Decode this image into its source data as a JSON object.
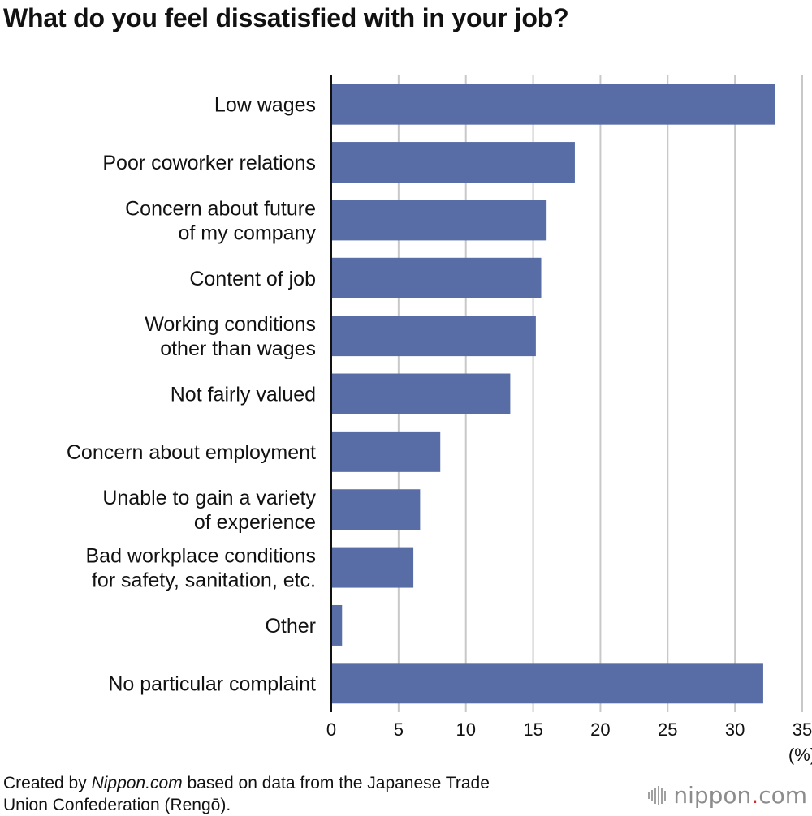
{
  "title": "What do you feel dissatisfied with in your job?",
  "chart_data": {
    "type": "bar",
    "orientation": "horizontal",
    "title": "What do you feel dissatisfied with in your job?",
    "categories": [
      [
        "Low wages"
      ],
      [
        "Poor coworker relations"
      ],
      [
        "Concern about future",
        "of my company"
      ],
      [
        "Content of job"
      ],
      [
        "Working conditions",
        "other than wages"
      ],
      [
        "Not fairly valued"
      ],
      [
        "Concern about employment"
      ],
      [
        "Unable to gain a variety",
        "of experience"
      ],
      [
        "Bad workplace conditions",
        "for safety, sanitation, etc."
      ],
      [
        "Other"
      ],
      [
        "No particular complaint"
      ]
    ],
    "values": [
      33.0,
      18.1,
      16.0,
      15.6,
      15.2,
      13.3,
      8.1,
      6.6,
      6.1,
      0.8,
      32.1
    ],
    "xlim": [
      0,
      35
    ],
    "xticks": [
      0,
      5,
      10,
      15,
      20,
      25,
      30,
      35
    ],
    "xlabel": "(%)",
    "ylabel": "",
    "grid": true,
    "bar_color": "#586da6",
    "grid_color": "#c8c8c8"
  },
  "source": {
    "prefix": "Created by ",
    "site": "Nippon.com",
    "line1_suffix": " based on data from the Japanese Trade",
    "line2": "Union Confederation (Rengō)."
  },
  "logo": {
    "name": "nippon",
    "dot": ".",
    "tld": "com",
    "accent": "#d3272c"
  }
}
